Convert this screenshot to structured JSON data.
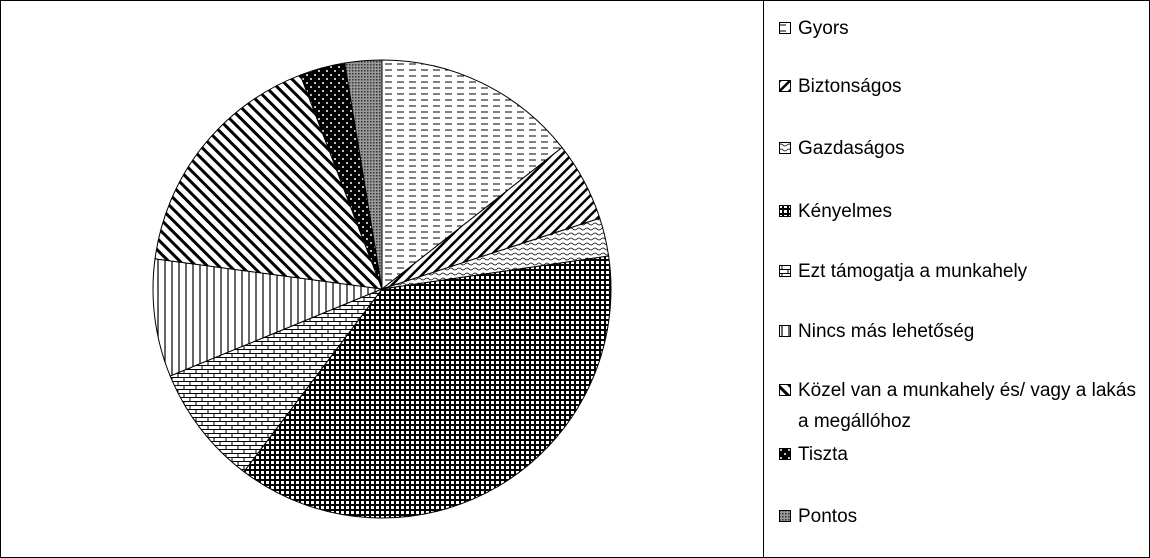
{
  "chart_data": {
    "type": "pie",
    "categories": [
      "Gyors",
      "Biztonságos",
      "Gazdaságos",
      "Kényelmes",
      "Ezt támogatja a munkahely",
      "Nincs más lehetőség",
      "Közel van a munkahely és/ vagy a lakás a megállóhoz",
      "Tiszta",
      "Pontos"
    ],
    "values": [
      14.4,
      5.6,
      2.7,
      37.6,
      8.5,
      8.3,
      17.1,
      3.2,
      2.6
    ]
  }
}
